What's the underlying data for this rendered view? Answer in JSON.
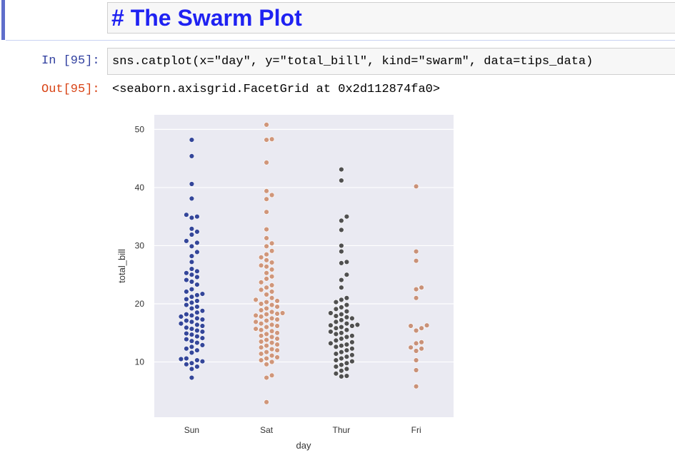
{
  "markdown_cell": {
    "text": "# The Swarm Plot"
  },
  "code_cell": {
    "in_prompt": "In [95]:",
    "code": "sns.catplot(x=\"day\", y=\"total_bill\", kind=\"swarm\", data=tips_data)",
    "out_prompt": "Out[95]:",
    "output_text": "<seaborn.axisgrid.FacetGrid at 0x2d112874fa0>"
  },
  "chart_data": {
    "type": "scatter",
    "kind": "swarm",
    "xlabel": "day",
    "ylabel": "total_bill",
    "categories": [
      "Sun",
      "Sat",
      "Thur",
      "Fri"
    ],
    "yticks": [
      10,
      20,
      30,
      40,
      50
    ],
    "ylim": [
      0.5,
      52.5
    ],
    "grid": true,
    "colors": {
      "Sun": "#34469a",
      "Sat": "#d0967a",
      "Thur": "#505050",
      "Fri": "#c99178",
      "background": "#eaeaf2",
      "grid": "#ffffff"
    },
    "series": [
      {
        "category": "Sun",
        "values": [
          48.2,
          45.4,
          40.6,
          38.1,
          35.3,
          35.0,
          34.8,
          32.9,
          32.4,
          31.9,
          30.8,
          30.5,
          29.9,
          28.9,
          28.2,
          27.2,
          26.0,
          25.6,
          25.3,
          25.0,
          24.6,
          24.1,
          23.8,
          23.3,
          22.5,
          22.1,
          21.7,
          21.5,
          21.2,
          20.8,
          20.5,
          20.2,
          19.8,
          19.5,
          19.2,
          18.8,
          18.5,
          18.2,
          18.0,
          17.8,
          17.5,
          17.3,
          17.1,
          16.9,
          16.6,
          16.4,
          16.2,
          15.9,
          15.7,
          15.4,
          15.2,
          14.9,
          14.7,
          14.4,
          14.1,
          13.9,
          13.6,
          13.3,
          12.9,
          12.6,
          12.3,
          12.0,
          11.6,
          10.6,
          10.5,
          10.3,
          10.1,
          9.8,
          9.6,
          9.2,
          8.8,
          7.3
        ]
      },
      {
        "category": "Sat",
        "values": [
          50.8,
          48.3,
          48.2,
          44.3,
          39.4,
          38.7,
          38.0,
          35.8,
          32.8,
          31.3,
          30.4,
          29.9,
          29.1,
          28.5,
          28.0,
          27.5,
          27.1,
          26.6,
          26.4,
          25.9,
          25.3,
          24.7,
          24.3,
          23.7,
          23.2,
          22.8,
          22.4,
          22.1,
          21.6,
          21.0,
          20.7,
          20.5,
          20.3,
          20.0,
          19.8,
          19.5,
          19.2,
          18.9,
          18.6,
          18.4,
          18.3,
          18.2,
          18.0,
          17.8,
          17.5,
          17.3,
          17.1,
          16.9,
          16.6,
          16.4,
          16.2,
          16.0,
          15.7,
          15.5,
          15.3,
          15.0,
          14.8,
          14.5,
          14.3,
          14.0,
          13.8,
          13.5,
          13.3,
          13.0,
          12.8,
          12.5,
          12.2,
          12.0,
          11.7,
          11.4,
          11.1,
          10.8,
          10.6,
          10.3,
          10.0,
          9.6,
          7.7,
          7.3,
          3.1
        ]
      },
      {
        "category": "Thur",
        "values": [
          43.1,
          41.2,
          35.0,
          34.3,
          32.7,
          30.0,
          29.0,
          27.2,
          27.0,
          25.0,
          24.1,
          22.8,
          21.0,
          20.7,
          20.3,
          19.8,
          19.4,
          19.1,
          18.7,
          18.4,
          18.2,
          17.9,
          17.7,
          17.5,
          17.2,
          16.9,
          16.6,
          16.4,
          16.3,
          16.2,
          16.0,
          15.8,
          15.5,
          15.2,
          15.0,
          14.8,
          14.5,
          14.3,
          14.0,
          13.7,
          13.4,
          13.2,
          13.0,
          12.8,
          12.6,
          12.3,
          12.0,
          11.7,
          11.4,
          11.2,
          10.9,
          10.6,
          10.3,
          10.1,
          9.8,
          9.5,
          9.2,
          8.8,
          8.5,
          8.0,
          7.6,
          7.5
        ]
      },
      {
        "category": "Fri",
        "values": [
          40.2,
          29.0,
          27.4,
          22.8,
          22.5,
          21.0,
          16.3,
          16.2,
          15.8,
          15.4,
          13.4,
          13.2,
          12.5,
          12.3,
          11.9,
          10.3,
          8.6,
          5.8
        ]
      }
    ]
  }
}
